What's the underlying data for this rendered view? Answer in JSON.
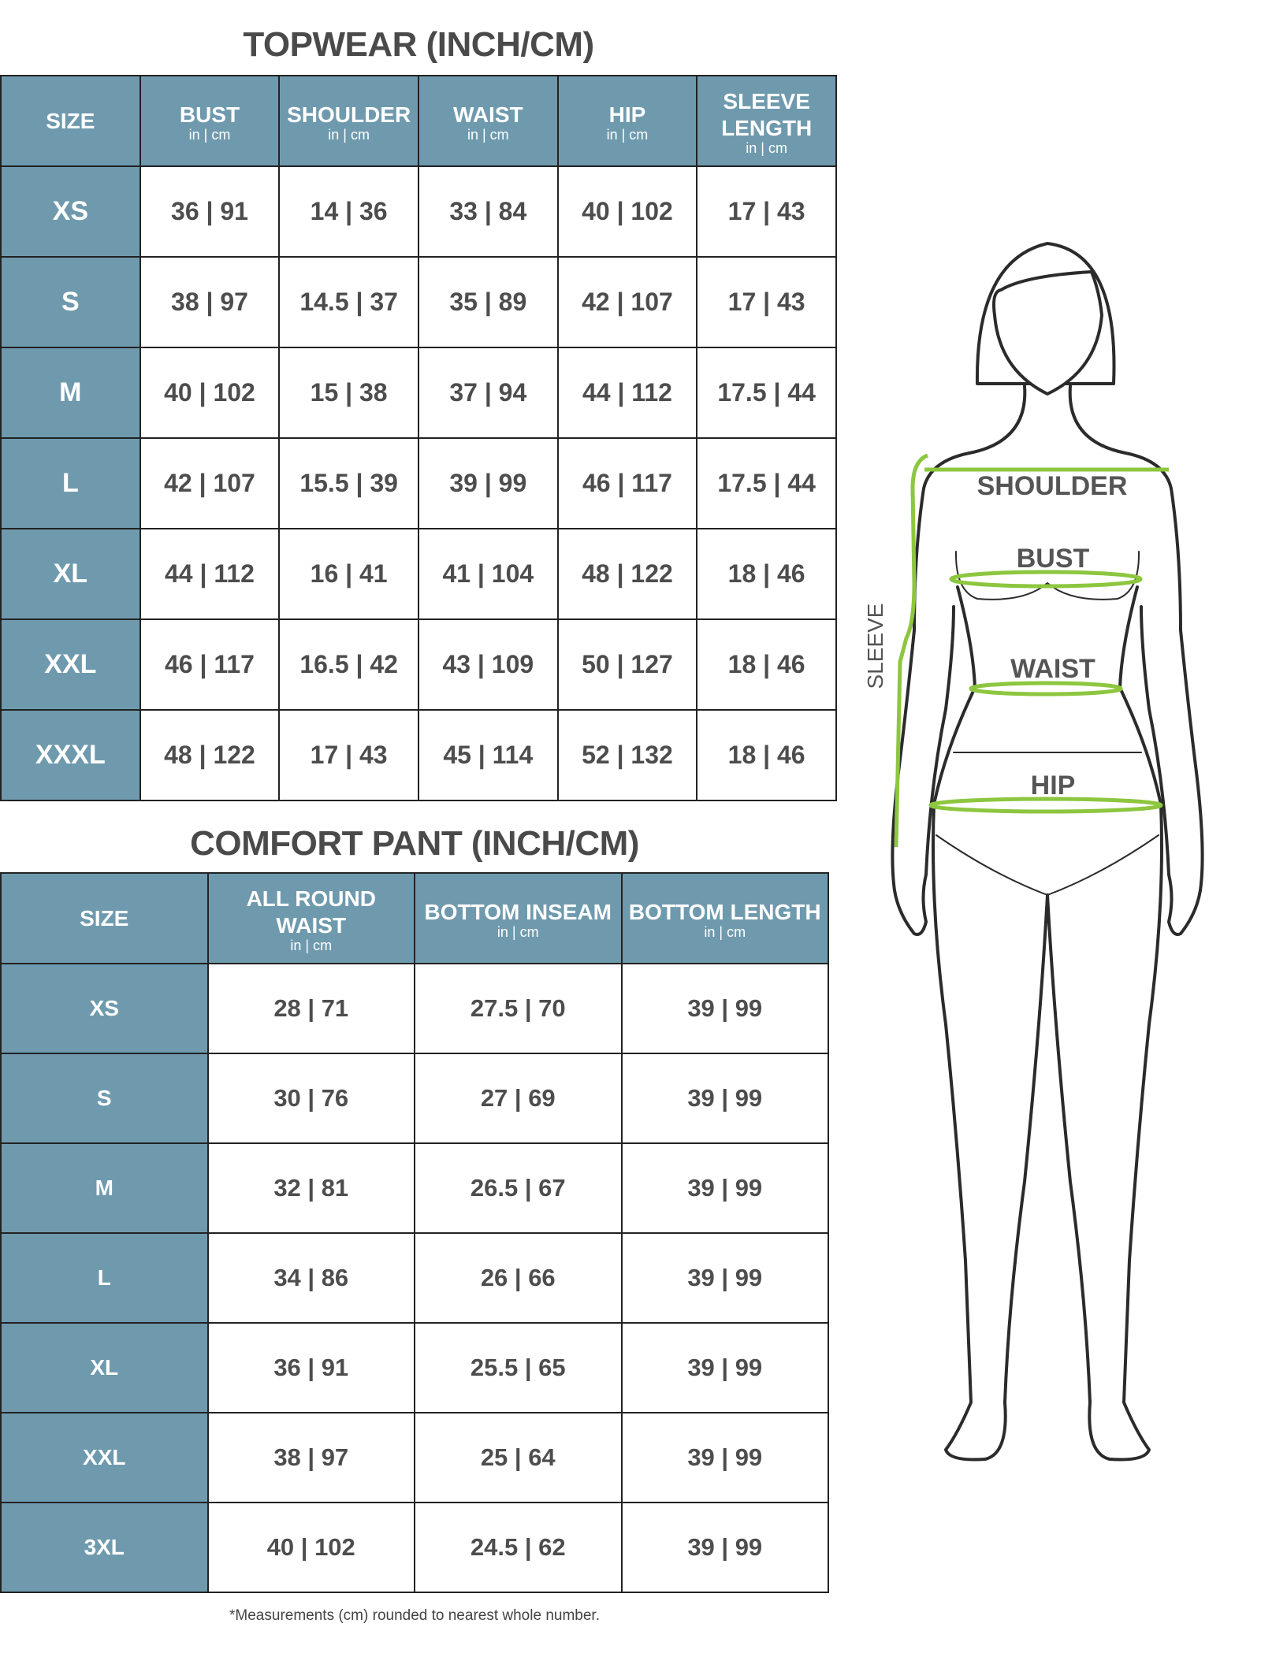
{
  "topwear": {
    "title": "TOPWEAR (INCH/CM)",
    "unit_label": "in | cm",
    "headers": [
      "SIZE",
      "BUST",
      "SHOULDER",
      "WAIST",
      "HIP",
      "SLEEVE LENGTH"
    ],
    "rows": [
      {
        "size": "XS",
        "values": [
          "36 | 91",
          "14 | 36",
          "33 | 84",
          "40 | 102",
          "17 | 43"
        ]
      },
      {
        "size": "S",
        "values": [
          "38 | 97",
          "14.5 | 37",
          "35 | 89",
          "42 | 107",
          "17 | 43"
        ]
      },
      {
        "size": "M",
        "values": [
          "40 | 102",
          "15 | 38",
          "37 | 94",
          "44 | 112",
          "17.5 | 44"
        ]
      },
      {
        "size": "L",
        "values": [
          "42 | 107",
          "15.5 | 39",
          "39 | 99",
          "46 | 117",
          "17.5 | 44"
        ]
      },
      {
        "size": "XL",
        "values": [
          "44 | 112",
          "16 | 41",
          "41 | 104",
          "48 | 122",
          "18 | 46"
        ]
      },
      {
        "size": "XXL",
        "values": [
          "46 | 117",
          "16.5 | 42",
          "43 | 109",
          "50 | 127",
          "18 | 46"
        ]
      },
      {
        "size": "XXXL",
        "values": [
          "48 | 122",
          "17 | 43",
          "45 | 114",
          "52 | 132",
          "18 | 46"
        ]
      }
    ]
  },
  "comfort_pant": {
    "title": "COMFORT PANT (INCH/CM)",
    "unit_label": "in | cm",
    "headers": [
      "SIZE",
      "ALL ROUND WAIST",
      "BOTTOM INSEAM",
      "BOTTOM LENGTH"
    ],
    "rows": [
      {
        "size": "XS",
        "values": [
          "28 | 71",
          "27.5 | 70",
          "39 | 99"
        ]
      },
      {
        "size": "S",
        "values": [
          "30 | 76",
          "27 | 69",
          "39 | 99"
        ]
      },
      {
        "size": "M",
        "values": [
          "32 | 81",
          "26.5 | 67",
          "39 | 99"
        ]
      },
      {
        "size": "L",
        "values": [
          "34 | 86",
          "26 | 66",
          "39 | 99"
        ]
      },
      {
        "size": "XL",
        "values": [
          "36 | 91",
          "25.5 | 65",
          "39 | 99"
        ]
      },
      {
        "size": "XXL",
        "values": [
          "38 | 97",
          "25 | 64",
          "39 | 99"
        ]
      },
      {
        "size": "3XL",
        "values": [
          "40 | 102",
          "24.5 | 62",
          "39 | 99"
        ]
      }
    ]
  },
  "footnote": "*Measurements (cm) rounded to nearest whole number.",
  "figure": {
    "labels": {
      "shoulder": "SHOULDER",
      "bust": "BUST",
      "waist": "WAIST",
      "hip": "HIP",
      "sleeve": "SLEEVE"
    }
  },
  "colors": {
    "header_bg": "#6f9aae",
    "measure_line": "#8dc63f",
    "text": "#4d4d4d"
  }
}
